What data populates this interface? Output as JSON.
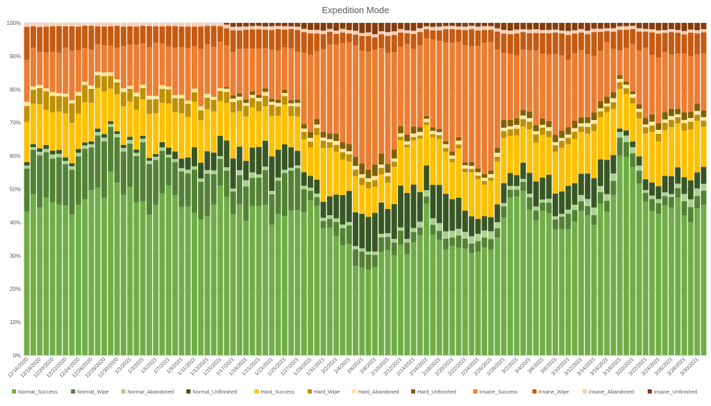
{
  "chart_data": {
    "type": "bar",
    "stacked": "percent",
    "title": "Expedition Mode",
    "ylim": [
      0,
      100
    ],
    "y_ticks": [
      "0%",
      "10%",
      "20%",
      "30%",
      "40%",
      "50%",
      "60%",
      "70%",
      "80%",
      "90%",
      "100%"
    ],
    "legend_position": "bottom",
    "grid": true,
    "x_tick_labels": [
      "12/16/2020",
      "12/18/2020",
      "12/20/2020",
      "12/22/2020",
      "12/24/2020",
      "12/26/2020",
      "12/28/2020",
      "12/30/2020",
      "1/1/2021",
      "1/3/2021",
      "1/5/2021",
      "1/7/2021",
      "1/9/2021",
      "1/11/2021",
      "1/13/2021",
      "1/15/2021",
      "1/17/2021",
      "1/19/2021",
      "1/21/2021",
      "1/23/2021",
      "1/25/2021",
      "1/27/2021",
      "1/29/2021",
      "1/31/2021",
      "2/2/2021",
      "2/4/2021",
      "2/6/2021",
      "2/8/2021",
      "2/10/2021",
      "2/12/2021",
      "2/14/2021",
      "2/16/2021",
      "2/18/2021",
      "2/20/2021",
      "2/22/2021",
      "2/24/2021",
      "2/26/2021",
      "2/28/2021",
      "3/2/2021",
      "3/4/2021",
      "3/6/2021",
      "3/8/2021",
      "3/10/2021",
      "3/12/2021",
      "3/14/2021",
      "3/16/2021",
      "3/18/2021",
      "3/20/2021",
      "3/22/2021",
      "3/24/2021",
      "3/26/2021",
      "3/28/2021",
      "3/30/2021"
    ],
    "anchors": [
      0,
      2,
      4,
      6,
      8,
      10,
      12,
      14,
      16,
      18,
      20,
      22,
      24,
      26,
      28,
      30,
      32,
      34,
      36,
      38,
      40,
      42,
      44,
      46,
      48,
      50,
      52,
      54,
      56,
      58,
      60,
      62,
      64,
      66,
      68,
      70,
      72,
      74,
      76,
      78,
      80,
      82,
      84,
      86,
      88,
      90,
      92,
      94,
      96,
      98,
      100,
      102,
      104,
      105
    ],
    "series": [
      {
        "name": "Normal_Success",
        "color": "#70AD47",
        "values": [
          46,
          47,
          44,
          45,
          46,
          46,
          51,
          50,
          47,
          46,
          45,
          50,
          48,
          43,
          45,
          47,
          45,
          44,
          43,
          40,
          41,
          44,
          46,
          40,
          38,
          36,
          24,
          26,
          31,
          34,
          36,
          44,
          38,
          32,
          34,
          31,
          33,
          43,
          49,
          45,
          42,
          41,
          40,
          46,
          40,
          43,
          62,
          54,
          44,
          45,
          46,
          43,
          44,
          43
        ]
      },
      {
        "name": "Normal_Wipe",
        "color": "#548235",
        "values": [
          13,
          14,
          13,
          12,
          14,
          16,
          16,
          13,
          14,
          16,
          13,
          10,
          9,
          12,
          11,
          9,
          7,
          10,
          9,
          10,
          12,
          12,
          3,
          2,
          4,
          5,
          5,
          4,
          4,
          4,
          3,
          2,
          3,
          3,
          3,
          3,
          3,
          3,
          2,
          3,
          3,
          3,
          4,
          3,
          3,
          4,
          5,
          4,
          3,
          3,
          3,
          4,
          4,
          4
        ]
      },
      {
        "name": "Normal_Abandoned",
        "color": "#A9D18E",
        "values": [
          1,
          1,
          1,
          1,
          1,
          1,
          1,
          1,
          1,
          1,
          1,
          1,
          1,
          1,
          1,
          1,
          1,
          2,
          1,
          1,
          1,
          1,
          1,
          1,
          1,
          1,
          1,
          1,
          1,
          1,
          1,
          2,
          2,
          2,
          2,
          2,
          2,
          1,
          1,
          1,
          1,
          1,
          1,
          2,
          2,
          2,
          2,
          2,
          1,
          1,
          1,
          2,
          2,
          2
        ]
      },
      {
        "name": "Normal_Unfinished",
        "color": "#375623",
        "values": [
          1,
          1,
          1,
          1,
          1,
          1,
          1,
          1,
          1,
          1,
          1,
          2,
          3,
          5,
          5,
          6,
          9,
          6,
          8,
          10,
          8,
          5,
          4,
          5,
          7,
          10,
          10,
          10,
          8,
          12,
          13,
          7,
          10,
          10,
          6,
          5,
          4,
          5,
          3,
          6,
          8,
          6,
          7,
          6,
          9,
          10,
          1,
          2,
          3,
          4,
          6,
          5,
          5,
          5
        ]
      },
      {
        "name": "Hard_Success",
        "color": "#FFC000",
        "values": [
          12,
          12,
          12,
          12,
          12,
          12,
          12,
          12,
          12,
          12,
          12,
          12,
          12,
          12,
          12,
          12,
          12,
          12,
          11,
          12,
          11,
          10,
          10,
          15,
          13,
          10,
          10,
          8,
          9,
          12,
          13,
          15,
          12,
          12,
          13,
          11,
          10,
          12,
          12,
          12,
          12,
          13,
          13,
          12,
          13,
          14,
          13,
          13,
          14,
          14,
          13,
          14,
          14,
          14
        ]
      },
      {
        "name": "Hard_Wipe",
        "color": "#BF9000",
        "values": [
          5,
          5,
          5,
          5,
          5,
          4,
          4,
          4,
          4,
          4,
          4,
          4,
          4,
          3,
          3,
          3,
          3,
          3,
          3,
          3,
          3,
          3,
          2,
          2,
          2,
          2,
          2,
          2,
          2,
          1,
          1,
          1,
          1,
          1,
          1,
          1,
          1,
          2,
          2,
          2,
          2,
          2,
          2,
          2,
          2,
          2,
          2,
          2,
          2,
          2,
          2,
          2,
          2,
          2
        ]
      },
      {
        "name": "Hard_Abandoned",
        "color": "#FFE699",
        "values": [
          1,
          1,
          1,
          1,
          1,
          1,
          1,
          1,
          1,
          1,
          1,
          1,
          1,
          1,
          1,
          1,
          1,
          1,
          1,
          1,
          1,
          1,
          1,
          1,
          1,
          1,
          1,
          1,
          1,
          1,
          1,
          1,
          1,
          1,
          1,
          1,
          1,
          1,
          1,
          1,
          1,
          1,
          1,
          1,
          1,
          1,
          1,
          1,
          1,
          1,
          1,
          1,
          1,
          1
        ]
      },
      {
        "name": "Hard_Unfinished",
        "color": "#806000",
        "values": [
          0,
          0,
          0,
          0,
          0,
          0,
          0,
          0,
          0,
          0,
          0,
          0,
          0,
          0,
          0,
          0,
          1,
          1,
          1,
          1,
          1,
          1,
          2,
          2,
          2,
          2,
          3,
          3,
          3,
          2,
          2,
          1,
          1,
          1,
          1,
          1,
          1,
          2,
          2,
          2,
          2,
          2,
          2,
          2,
          2,
          2,
          1,
          1,
          2,
          2,
          2,
          2,
          2,
          2
        ]
      },
      {
        "name": "Insane_Success",
        "color": "#ED7D31",
        "values": [
          12,
          10,
          13,
          14,
          12,
          11,
          8,
          11,
          13,
          12,
          15,
          12,
          13,
          15,
          13,
          14,
          13,
          14,
          15,
          14,
          15,
          15,
          22,
          25,
          26,
          28,
          31,
          33,
          32,
          27,
          24,
          22,
          26,
          30,
          32,
          37,
          38,
          22,
          20,
          20,
          21,
          22,
          21,
          19,
          19,
          16,
          7,
          14,
          20,
          18,
          17,
          17,
          16,
          17
        ]
      },
      {
        "name": "Insane_Wipe",
        "color": "#C55A11",
        "values": [
          8,
          7,
          8,
          7,
          7,
          7,
          5,
          6,
          6,
          6,
          6,
          6,
          6,
          6,
          6,
          5,
          6,
          5,
          6,
          6,
          6,
          6,
          6,
          4,
          3,
          3,
          4,
          4,
          5,
          4,
          4,
          3,
          3,
          4,
          4,
          5,
          4,
          5,
          6,
          5,
          6,
          6,
          7,
          5,
          7,
          4,
          6,
          5,
          6,
          6,
          6,
          6,
          6,
          6
        ]
      },
      {
        "name": "Insane_Abandoned",
        "color": "#F8CBAD",
        "values": [
          1,
          1,
          1,
          1,
          1,
          1,
          1,
          1,
          1,
          1,
          1,
          1,
          1,
          1,
          1,
          1,
          1,
          1,
          1,
          1,
          1,
          1,
          1,
          1,
          1,
          1,
          1,
          1,
          1,
          1,
          1,
          1,
          1,
          1,
          1,
          1,
          1,
          1,
          1,
          1,
          1,
          1,
          1,
          1,
          1,
          1,
          1,
          1,
          1,
          1,
          1,
          1,
          1,
          1
        ]
      },
      {
        "name": "Insane_Unfinished",
        "color": "#843C0C",
        "values": [
          0,
          0,
          0,
          0,
          0,
          0,
          0,
          0,
          0,
          0,
          0,
          0,
          0,
          0,
          0,
          0,
          1,
          1,
          1,
          1,
          1,
          1,
          2,
          2,
          2,
          2,
          3,
          3,
          3,
          2,
          2,
          1,
          1,
          1,
          1,
          1,
          1,
          2,
          2,
          2,
          2,
          2,
          2,
          2,
          2,
          2,
          1,
          1,
          2,
          2,
          2,
          2,
          2,
          2
        ]
      }
    ]
  }
}
